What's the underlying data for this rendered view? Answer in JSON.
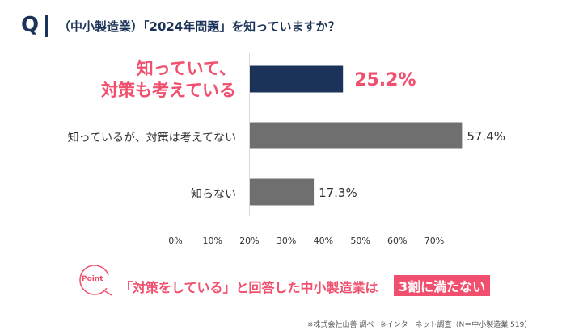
{
  "question": {
    "mark": "Q",
    "text": "（中小製造業）「2024年問題」を知っていますか？"
  },
  "chart_data": {
    "type": "bar",
    "orientation": "horizontal",
    "categories": [
      "知っていて、対策も考えている",
      "知っているが、対策は考えてない",
      "知らない"
    ],
    "category_display": [
      [
        "知っていて、",
        "対策も考えている"
      ],
      [
        "知っているが、対策は考えてない"
      ],
      [
        "知らない"
      ]
    ],
    "values": [
      25.2,
      57.4,
      17.3
    ],
    "value_labels": [
      "25.2%",
      "57.4%",
      "17.3%"
    ],
    "xlim": [
      0,
      70
    ],
    "xticks": [
      "0%",
      "10%",
      "20%",
      "30%",
      "40%",
      "50%",
      "60%",
      "70%"
    ],
    "highlight_index": 0,
    "grid": false,
    "colors": {
      "highlight_bar": "#1b3358",
      "bar": "#6f6f6f",
      "highlight_text": "#f0506e",
      "text": "#333333"
    }
  },
  "point": {
    "badge": "Point",
    "text": "「対策をしている」と回答した中小製造業は",
    "highlight": "3割に満たない"
  },
  "footnotes": {
    "source": "※株式会社山善 調べ",
    "survey": "※インターネット調査（N＝中小製造業 519）"
  }
}
